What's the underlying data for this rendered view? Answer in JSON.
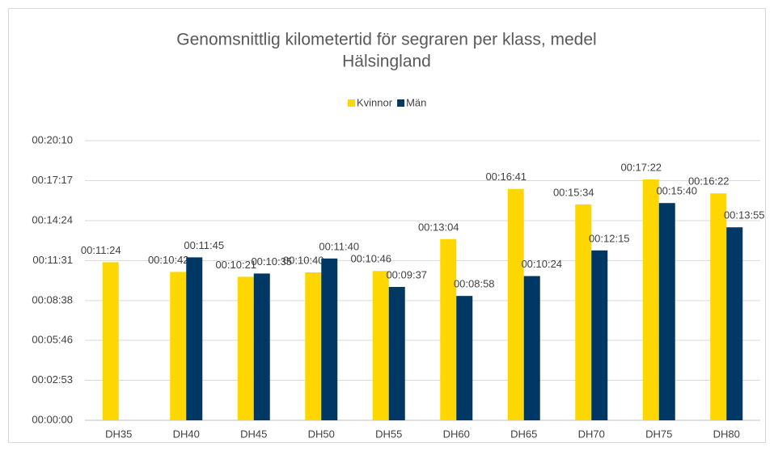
{
  "chart_data": {
    "type": "bar",
    "title": [
      "Genomsnittlig kilometertid för segraren per klass, medel",
      "Hälsingland"
    ],
    "categories": [
      "DH35",
      "DH40",
      "DH45",
      "DH50",
      "DH55",
      "DH60",
      "DH65",
      "DH70",
      "DH75",
      "DH80"
    ],
    "series": [
      {
        "name": "Kvinnor",
        "color": "#ffd700",
        "values": [
          684,
          642,
          621,
          640,
          646,
          784,
          1001,
          934,
          1042,
          982
        ],
        "value_labels": [
          "00:11:24",
          "00:10:42",
          "00:10:21",
          "00:10:40",
          "00:10:46",
          "00:13:04",
          "00:16:41",
          "00:15:34",
          "00:17:22",
          "00:16:22"
        ]
      },
      {
        "name": "Män",
        "color": "#003865",
        "values": [
          null,
          705,
          635,
          700,
          577,
          538,
          624,
          735,
          940,
          835
        ],
        "value_labels": [
          null,
          "00:11:45",
          "00:10:35",
          "00:11:40",
          "00:09:37",
          "00:08:58",
          "00:10:24",
          "00:12:15",
          "00:15:40",
          "00:13:55"
        ]
      }
    ],
    "ylim": [
      0,
      1210
    ],
    "yticks": [
      {
        "value": 0,
        "label": "00:00:00"
      },
      {
        "value": 173,
        "label": "00:02:53"
      },
      {
        "value": 346,
        "label": "00:05:46"
      },
      {
        "value": 518,
        "label": "00:08:38"
      },
      {
        "value": 691,
        "label": "00:11:31"
      },
      {
        "value": 864,
        "label": "00:14:24"
      },
      {
        "value": 1037,
        "label": "00:17:17"
      },
      {
        "value": 1210,
        "label": "00:20:10"
      }
    ],
    "grid": true,
    "legend": "top"
  }
}
